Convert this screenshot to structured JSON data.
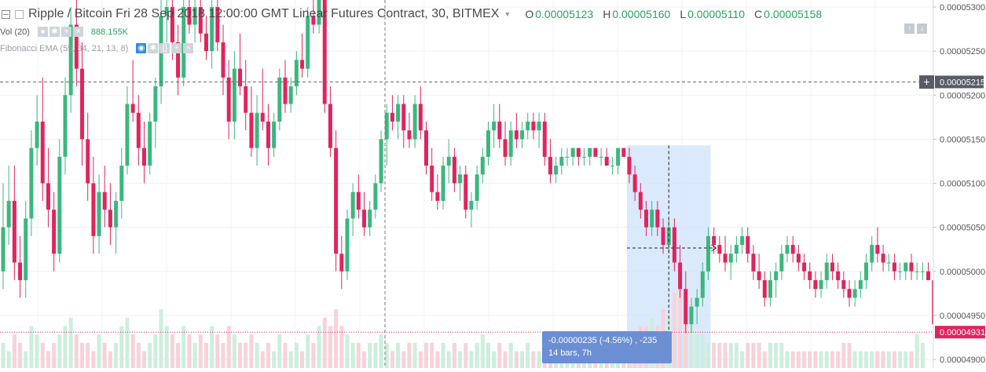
{
  "legend": {
    "symbol": "Ripple / Bitcoin",
    "date": "Fri 28 Sep 2018",
    "time": "12:00:00",
    "timezone": "GMT",
    "contract": "Linear Futures Contract",
    "interval": "30",
    "exchange": "BITMEX",
    "ohlc": {
      "o_label": "O",
      "o": "0.00005123",
      "h_label": "H",
      "h": "0.00005160",
      "l_label": "L",
      "l": "0.00005110",
      "c_label": "C",
      "c": "0.00005158"
    }
  },
  "volume_indicator": {
    "label": "Vol (20)",
    "value": "888.155K"
  },
  "fib_indicator": {
    "label": "Fibonacci EMA (55, 34, 21, 13, 8)"
  },
  "buttons": {
    "eye_icon": "eye-icon",
    "settings_icon": "gear-icon",
    "source_icon": "code-icon",
    "add_icon": "plus-icon",
    "remove_icon": "close-icon",
    "scroll_up": "↑",
    "scroll_down": "↓",
    "crosshair_add": "+"
  },
  "price_axis": {
    "ticks": [
      "0.00005300",
      "0.00005250",
      "0.00005200",
      "0.00005150",
      "0.00005100",
      "0.00005050",
      "0.00005000",
      "0.00004950",
      "0.00004900"
    ],
    "crosshair_label": "0.00005215",
    "last_price_label": "0.00004931"
  },
  "measure_tooltip": {
    "line1": "-0.00000235 (-4.56%) , -235",
    "line2": "14 bars, 7h"
  },
  "colors": {
    "up": "#3bb77e",
    "down": "#e0245e",
    "up_volume": "#cdeedd",
    "down_volume": "#f8d2da",
    "measure_fill": "#cfe2fb",
    "price_badge": "#e0245e",
    "crosshair_badge": "#595c66",
    "tooltip_bg": "#6b8fd2"
  },
  "chart_data": {
    "type": "candlestick",
    "title": "Ripple / Bitcoin Linear Futures Contract, 30, BITMEX",
    "ylabel": "",
    "ylim": [
      4.89e-05,
      5.31e-05
    ],
    "price_scale": "linear",
    "grid": true,
    "crosshair_price": 5.215e-05,
    "last_price": 4.931e-05,
    "measure": {
      "from_bar": 111,
      "to_bar": 125,
      "change": -2.35e-06,
      "percent": -4.56,
      "ticks": -235,
      "bars": 14,
      "duration": "7h"
    },
    "bars": [
      [
        5e-05,
        5.1e-05,
        4.98e-05,
        5.05e-05
      ],
      [
        5.05e-05,
        5.12e-05,
        5.03e-05,
        5.08e-05
      ],
      [
        5.08e-05,
        5.12e-05,
        4.99e-05,
        5.01e-05
      ],
      [
        5.01e-05,
        5.04e-05,
        4.97e-05,
        4.99e-05
      ],
      [
        4.99e-05,
        5.08e-05,
        4.97e-05,
        5.06e-05
      ],
      [
        5.06e-05,
        5.16e-05,
        5.04e-05,
        5.14e-05
      ],
      [
        5.14e-05,
        5.2e-05,
        5.12e-05,
        5.17e-05
      ],
      [
        5.17e-05,
        5.22e-05,
        5.08e-05,
        5.1e-05
      ],
      [
        5.1e-05,
        5.14e-05,
        5.05e-05,
        5.07e-05
      ],
      [
        5.07e-05,
        5.09e-05,
        5e-05,
        5.02e-05
      ],
      [
        5.02e-05,
        5.15e-05,
        5.01e-05,
        5.13e-05
      ],
      [
        5.13e-05,
        5.22e-05,
        5.11e-05,
        5.2e-05
      ],
      [
        5.2e-05,
        5.3e-05,
        5.18e-05,
        5.28e-05
      ],
      [
        5.28e-05,
        5.32e-05,
        5.21e-05,
        5.23e-05
      ],
      [
        5.23e-05,
        5.26e-05,
        5.12e-05,
        5.15e-05
      ],
      [
        5.15e-05,
        5.18e-05,
        5.08e-05,
        5.1e-05
      ],
      [
        5.1e-05,
        5.13e-05,
        5.02e-05,
        5.04e-05
      ],
      [
        5.04e-05,
        5.11e-05,
        5.02e-05,
        5.09e-05
      ],
      [
        5.09e-05,
        5.12e-05,
        5.05e-05,
        5.07e-05
      ],
      [
        5.07e-05,
        5.1e-05,
        5.03e-05,
        5.05e-05
      ],
      [
        5.05e-05,
        5.09e-05,
        5.02e-05,
        5.08e-05
      ],
      [
        5.08e-05,
        5.14e-05,
        5.06e-05,
        5.12e-05
      ],
      [
        5.12e-05,
        5.21e-05,
        5.11e-05,
        5.19e-05
      ],
      [
        5.19e-05,
        5.24e-05,
        5.17e-05,
        5.18e-05
      ],
      [
        5.18e-05,
        5.2e-05,
        5.12e-05,
        5.14e-05
      ],
      [
        5.14e-05,
        5.17e-05,
        5.1e-05,
        5.12e-05
      ],
      [
        5.12e-05,
        5.18e-05,
        5.11e-05,
        5.17e-05
      ],
      [
        5.17e-05,
        5.22e-05,
        5.14e-05,
        5.21e-05
      ],
      [
        5.21e-05,
        5.31e-05,
        5.19e-05,
        5.29e-05
      ],
      [
        5.29e-05,
        5.32e-05,
        5.26e-05,
        5.3e-05
      ],
      [
        5.3e-05,
        5.32e-05,
        5.24e-05,
        5.26e-05
      ],
      [
        5.26e-05,
        5.28e-05,
        5.2e-05,
        5.22e-05
      ],
      [
        5.22e-05,
        5.31e-05,
        5.21e-05,
        5.3e-05
      ],
      [
        5.3e-05,
        5.32e-05,
        5.27e-05,
        5.28e-05
      ],
      [
        5.28e-05,
        5.31e-05,
        5.26e-05,
        5.3e-05
      ],
      [
        5.3e-05,
        5.32e-05,
        5.26e-05,
        5.27e-05
      ],
      [
        5.27e-05,
        5.29e-05,
        5.24e-05,
        5.25e-05
      ],
      [
        5.25e-05,
        5.31e-05,
        5.23e-05,
        5.3e-05
      ],
      [
        5.3e-05,
        5.32e-05,
        5.25e-05,
        5.26e-05
      ],
      [
        5.26e-05,
        5.28e-05,
        5.2e-05,
        5.22e-05
      ],
      [
        5.22e-05,
        5.24e-05,
        5.15e-05,
        5.17e-05
      ],
      [
        5.17e-05,
        5.25e-05,
        5.15e-05,
        5.23e-05
      ],
      [
        5.23e-05,
        5.27e-05,
        5.2e-05,
        5.21e-05
      ],
      [
        5.21e-05,
        5.24e-05,
        5.16e-05,
        5.18e-05
      ],
      [
        5.18e-05,
        5.21e-05,
        5.13e-05,
        5.14e-05
      ],
      [
        5.14e-05,
        5.2e-05,
        5.12e-05,
        5.18e-05
      ],
      [
        5.18e-05,
        5.23e-05,
        5.16e-05,
        5.17e-05
      ],
      [
        5.17e-05,
        5.19e-05,
        5.12e-05,
        5.14e-05
      ],
      [
        5.14e-05,
        5.18e-05,
        5.13e-05,
        5.17e-05
      ],
      [
        5.17e-05,
        5.23e-05,
        5.16e-05,
        5.22e-05
      ],
      [
        5.22e-05,
        5.24e-05,
        5.18e-05,
        5.19e-05
      ],
      [
        5.19e-05,
        5.22e-05,
        5.18e-05,
        5.21e-05
      ],
      [
        5.21e-05,
        5.25e-05,
        5.2e-05,
        5.24e-05
      ],
      [
        5.24e-05,
        5.27e-05,
        5.22e-05,
        5.23e-05
      ],
      [
        5.23e-05,
        5.3e-05,
        5.22e-05,
        5.29e-05
      ],
      [
        5.29e-05,
        5.32e-05,
        5.27e-05,
        5.28e-05
      ],
      [
        5.28e-05,
        5.32e-05,
        5.27e-05,
        5.31e-05
      ],
      [
        5.31e-05,
        5.32e-05,
        5.18e-05,
        5.19e-05
      ],
      [
        5.19e-05,
        5.21e-05,
        5.13e-05,
        5.14e-05
      ],
      [
        5.14e-05,
        5.16e-05,
        5e-05,
        5.02e-05
      ],
      [
        5.02e-05,
        5.04e-05,
        4.98e-05,
        5e-05
      ],
      [
        5e-05,
        5.07e-05,
        4.99e-05,
        5.06e-05
      ],
      [
        5.06e-05,
        5.1e-05,
        5.04e-05,
        5.09e-05
      ],
      [
        5.09e-05,
        5.11e-05,
        5.06e-05,
        5.07e-05
      ],
      [
        5.07e-05,
        5.09e-05,
        5.04e-05,
        5.05e-05
      ],
      [
        5.05e-05,
        5.08e-05,
        5.04e-05,
        5.07e-05
      ],
      [
        5.07e-05,
        5.11e-05,
        5.06e-05,
        5.1e-05
      ],
      [
        5.1e-05,
        5.16e-05,
        5.09e-05,
        5.15e-05
      ],
      [
        5.15e-05,
        5.19e-05,
        5.12e-05,
        5.18e-05
      ],
      [
        5.18e-05,
        5.2e-05,
        5.16e-05,
        5.17e-05
      ],
      [
        5.17e-05,
        5.2e-05,
        5.15e-05,
        5.19e-05
      ],
      [
        5.19e-05,
        5.2e-05,
        5.14e-05,
        5.16e-05
      ],
      [
        5.16e-05,
        5.18e-05,
        5.14e-05,
        5.15e-05
      ],
      [
        5.15e-05,
        5.2e-05,
        5.14e-05,
        5.19e-05
      ],
      [
        5.19e-05,
        5.21e-05,
        5.15e-05,
        5.16e-05
      ],
      [
        5.16e-05,
        5.17e-05,
        5.11e-05,
        5.12e-05
      ],
      [
        5.12e-05,
        5.14e-05,
        5.08e-05,
        5.09e-05
      ],
      [
        5.09e-05,
        5.11e-05,
        5.07e-05,
        5.08e-05
      ],
      [
        5.08e-05,
        5.13e-05,
        5.07e-05,
        5.12e-05
      ],
      [
        5.12e-05,
        5.15e-05,
        5.1e-05,
        5.13e-05
      ],
      [
        5.13e-05,
        5.14e-05,
        5.09e-05,
        5.1e-05
      ],
      [
        5.1e-05,
        5.12e-05,
        5.08e-05,
        5.11e-05
      ],
      [
        5.11e-05,
        5.12e-05,
        5.06e-05,
        5.07e-05
      ],
      [
        5.07e-05,
        5.09e-05,
        5.05e-05,
        5.08e-05
      ],
      [
        5.08e-05,
        5.12e-05,
        5.07e-05,
        5.11e-05
      ],
      [
        5.11e-05,
        5.14e-05,
        5.1e-05,
        5.13e-05
      ],
      [
        5.13e-05,
        5.17e-05,
        5.12e-05,
        5.16e-05
      ],
      [
        5.16e-05,
        5.19e-05,
        5.14e-05,
        5.17e-05
      ],
      [
        5.17e-05,
        5.19e-05,
        5.14e-05,
        5.15e-05
      ],
      [
        5.15e-05,
        5.17e-05,
        5.12e-05,
        5.13e-05
      ],
      [
        5.13e-05,
        5.17e-05,
        5.12e-05,
        5.16e-05
      ],
      [
        5.16e-05,
        5.18e-05,
        5.14e-05,
        5.15e-05
      ],
      [
        5.15e-05,
        5.17e-05,
        5.14e-05,
        5.16e-05
      ],
      [
        5.16e-05,
        5.18e-05,
        5.15e-05,
        5.17e-05
      ],
      [
        5.17e-05,
        5.18e-05,
        5.15e-05,
        5.16e-05
      ],
      [
        5.16e-05,
        5.18e-05,
        5.14e-05,
        5.17e-05
      ],
      [
        5.17e-05,
        5.18e-05,
        5.12e-05,
        5.13e-05
      ],
      [
        5.13e-05,
        5.15e-05,
        5.1e-05,
        5.11e-05
      ],
      [
        5.11e-05,
        5.13e-05,
        5.1e-05,
        5.12e-05
      ],
      [
        5.12e-05,
        5.14e-05,
        5.11e-05,
        5.13e-05
      ],
      [
        5.13e-05,
        5.14e-05,
        5.12e-05,
        5.13e-05
      ],
      [
        5.13e-05,
        5.14e-05,
        5.12e-05,
        5.14e-05
      ],
      [
        5.14e-05,
        5.14e-05,
        5.12e-05,
        5.13e-05
      ],
      [
        5.13e-05,
        5.14e-05,
        5.12e-05,
        5.13e-05
      ],
      [
        5.13e-05,
        5.14e-05,
        5.12e-05,
        5.14e-05
      ],
      [
        5.14e-05,
        5.14e-05,
        5.13e-05,
        5.13e-05
      ],
      [
        5.13e-05,
        5.14e-05,
        5.12e-05,
        5.13e-05
      ],
      [
        5.13e-05,
        5.14e-05,
        5.12e-05,
        5.12e-05
      ],
      [
        5.12e-05,
        5.13e-05,
        5.11e-05,
        5.12e-05
      ],
      [
        5.12e-05,
        5.14e-05,
        5.11e-05,
        5.14e-05
      ],
      [
        5.14e-05,
        5.14e-05,
        5.13e-05,
        5.13e-05
      ],
      [
        5.13e-05,
        5.14e-05,
        5.1e-05,
        5.11e-05
      ],
      [
        5.11e-05,
        5.12e-05,
        5.08e-05,
        5.09e-05
      ],
      [
        5.09e-05,
        5.1e-05,
        5.06e-05,
        5.07e-05
      ],
      [
        5.07e-05,
        5.08e-05,
        5.04e-05,
        5.05e-05
      ],
      [
        5.05e-05,
        5.08e-05,
        5.04e-05,
        5.07e-05
      ],
      [
        5.07e-05,
        5.08e-05,
        5.04e-05,
        5.05e-05
      ],
      [
        5.05e-05,
        5.06e-05,
        5.02e-05,
        5.03e-05
      ],
      [
        5.03e-05,
        5.06e-05,
        5.02e-05,
        5.05e-05
      ],
      [
        5.05e-05,
        5.06e-05,
        5e-05,
        5.01e-05
      ],
      [
        5.01e-05,
        5.03e-05,
        4.97e-05,
        4.98e-05
      ],
      [
        4.98e-05,
        5e-05,
        4.93e-05,
        4.94e-05
      ],
      [
        4.94e-05,
        4.97e-05,
        4.93e-05,
        4.96e-05
      ],
      [
        4.96e-05,
        4.98e-05,
        4.94e-05,
        4.97e-05
      ],
      [
        4.97e-05,
        5.01e-05,
        4.96e-05,
        5e-05
      ],
      [
        5e-05,
        5.05e-05,
        4.99e-05,
        5.04e-05
      ],
      [
        5.04e-05,
        5.05e-05,
        5.02e-05,
        5.03e-05
      ],
      [
        5.03e-05,
        5.04e-05,
        5.01e-05,
        5.02e-05
      ],
      [
        5.02e-05,
        5.04e-05,
        5e-05,
        5.01e-05
      ],
      [
        5.01e-05,
        5.03e-05,
        4.99e-05,
        5.02e-05
      ],
      [
        5.02e-05,
        5.04e-05,
        5.01e-05,
        5.03e-05
      ],
      [
        5.03e-05,
        5.05e-05,
        5.02e-05,
        5.04e-05
      ],
      [
        5.04e-05,
        5.05e-05,
        5.01e-05,
        5.02e-05
      ],
      [
        5.02e-05,
        5.03e-05,
        4.99e-05,
        5e-05
      ],
      [
        5e-05,
        5.02e-05,
        4.98e-05,
        4.99e-05
      ],
      [
        4.99e-05,
        5e-05,
        4.96e-05,
        4.97e-05
      ],
      [
        4.97e-05,
        5e-05,
        4.96e-05,
        4.99e-05
      ],
      [
        4.99e-05,
        5.01e-05,
        4.97e-05,
        5e-05
      ],
      [
        5e-05,
        5.03e-05,
        4.99e-05,
        5.02e-05
      ],
      [
        5.02e-05,
        5.04e-05,
        5.01e-05,
        5.03e-05
      ],
      [
        5.03e-05,
        5.04e-05,
        5.01e-05,
        5.02e-05
      ],
      [
        5.02e-05,
        5.03e-05,
        5e-05,
        5.01e-05
      ],
      [
        5.01e-05,
        5.02e-05,
        4.99e-05,
        5e-05
      ],
      [
        5e-05,
        5.01e-05,
        4.98e-05,
        4.99e-05
      ],
      [
        4.99e-05,
        5e-05,
        4.97e-05,
        4.98e-05
      ],
      [
        4.98e-05,
        5e-05,
        4.97e-05,
        4.99e-05
      ],
      [
        4.99e-05,
        5.02e-05,
        4.98e-05,
        5.01e-05
      ],
      [
        5.01e-05,
        5.02e-05,
        4.99e-05,
        5e-05
      ],
      [
        5e-05,
        5.01e-05,
        4.98e-05,
        4.99e-05
      ],
      [
        4.99e-05,
        5e-05,
        4.97e-05,
        4.98e-05
      ],
      [
        4.98e-05,
        4.99e-05,
        4.96e-05,
        4.97e-05
      ],
      [
        4.97e-05,
        4.99e-05,
        4.96e-05,
        4.98e-05
      ],
      [
        4.98e-05,
        5e-05,
        4.97e-05,
        4.99e-05
      ],
      [
        4.99e-05,
        5.02e-05,
        4.98e-05,
        5.01e-05
      ],
      [
        5.01e-05,
        5.04e-05,
        5e-05,
        5.03e-05
      ],
      [
        5.03e-05,
        5.05e-05,
        5.01e-05,
        5.02e-05
      ],
      [
        5.02e-05,
        5.03e-05,
        5e-05,
        5.01e-05
      ],
      [
        5.01e-05,
        5.02e-05,
        5e-05,
        5.01e-05
      ],
      [
        5.01e-05,
        5.02e-05,
        4.99e-05,
        5e-05
      ],
      [
        5e-05,
        5.01e-05,
        4.99e-05,
        5e-05
      ],
      [
        5e-05,
        5.01e-05,
        4.99e-05,
        5.01e-05
      ],
      [
        5.01e-05,
        5.02e-05,
        4.99e-05,
        5e-05
      ],
      [
        5e-05,
        5.01e-05,
        4.99e-05,
        5e-05
      ],
      [
        5e-05,
        5.01e-05,
        4.99e-05,
        5e-05
      ],
      [
        5e-05,
        5.01e-05,
        4.99e-05,
        4.99e-05
      ],
      [
        4.99e-05,
        5e-05,
        4.93e-05,
        4.94e-05
      ],
      [
        4.94e-05,
        4.95e-05,
        4.93e-05,
        4.93e-05
      ]
    ],
    "volume": [
      0.3,
      0.2,
      0.4,
      0.3,
      0.2,
      0.5,
      0.4,
      0.3,
      0.2,
      0.3,
      0.4,
      0.5,
      0.6,
      0.4,
      0.3,
      0.3,
      0.2,
      0.4,
      0.3,
      0.2,
      0.3,
      0.5,
      0.6,
      0.4,
      0.3,
      0.2,
      0.3,
      0.4,
      0.7,
      0.5,
      0.4,
      0.3,
      0.5,
      0.4,
      0.3,
      0.4,
      0.3,
      0.5,
      0.4,
      0.3,
      0.5,
      0.4,
      0.3,
      0.3,
      0.4,
      0.3,
      0.2,
      0.3,
      0.2,
      0.4,
      0.3,
      0.2,
      0.3,
      0.2,
      0.4,
      0.3,
      0.5,
      0.6,
      0.5,
      0.7,
      0.5,
      0.4,
      0.3,
      0.3,
      0.2,
      0.3,
      0.3,
      0.4,
      0.3,
      0.2,
      0.3,
      0.2,
      0.3,
      0.3,
      0.2,
      0.3,
      0.3,
      0.2,
      0.3,
      0.2,
      0.3,
      0.2,
      0.3,
      0.2,
      0.3,
      0.4,
      0.3,
      0.2,
      0.3,
      0.2,
      0.3,
      0.2,
      0.2,
      0.3,
      0.2,
      0.2,
      0.3,
      0.2,
      0.2,
      0.2,
      0.2,
      0.2,
      0.2,
      0.2,
      0.2,
      0.2,
      0.2,
      0.2,
      0.2,
      0.2,
      0.3,
      0.4,
      0.4,
      0.5,
      0.5,
      0.6,
      0.5,
      0.7,
      0.6,
      0.9,
      1.0,
      0.6,
      0.5,
      0.4,
      0.4,
      0.3,
      0.3,
      0.3,
      0.3,
      0.3,
      0.3,
      0.2,
      0.3,
      0.3,
      0.3,
      0.2,
      0.3,
      0.3,
      0.3,
      0.2,
      0.2,
      0.2,
      0.2,
      0.2,
      0.2,
      0.2,
      0.2,
      0.2,
      0.2,
      0.3,
      0.3,
      0.2,
      0.2,
      0.2,
      0.2,
      0.2,
      0.2,
      0.2,
      0.2,
      0.2,
      0.2,
      0.2,
      0.4,
      0.3
    ]
  }
}
